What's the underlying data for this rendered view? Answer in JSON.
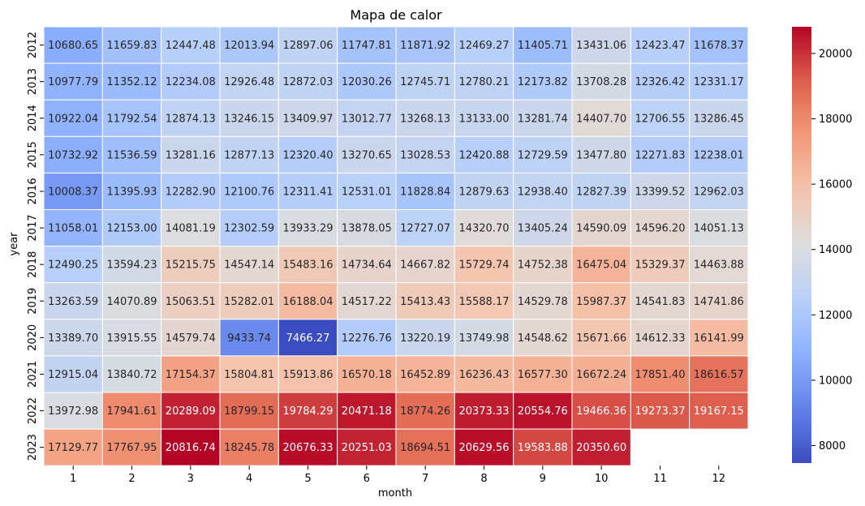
{
  "chart_data": {
    "type": "heatmap",
    "title": "Mapa de calor",
    "xlabel": "month",
    "ylabel": "year",
    "x_categories": [
      "1",
      "2",
      "3",
      "4",
      "5",
      "6",
      "7",
      "8",
      "9",
      "10",
      "11",
      "12"
    ],
    "y_categories": [
      "2012",
      "2013",
      "2014",
      "2015",
      "2016",
      "2017",
      "2018",
      "2019",
      "2020",
      "2021",
      "2022",
      "2023"
    ],
    "values": [
      [
        10680.65,
        11659.83,
        12447.48,
        12013.94,
        12897.06,
        11747.81,
        11871.92,
        12469.27,
        11405.71,
        13431.06,
        12423.47,
        11678.37
      ],
      [
        10977.79,
        11352.12,
        12234.08,
        12926.48,
        12872.03,
        12030.26,
        12745.71,
        12780.21,
        12173.82,
        13708.28,
        12326.42,
        12331.17
      ],
      [
        10922.04,
        11792.54,
        12874.13,
        13246.15,
        13409.97,
        13012.77,
        13268.13,
        13133.0,
        13281.74,
        14407.7,
        12706.55,
        13286.45
      ],
      [
        10732.92,
        11536.59,
        13281.16,
        12877.13,
        12320.4,
        13270.65,
        13028.53,
        12420.88,
        12729.59,
        13477.8,
        12271.83,
        12238.01
      ],
      [
        10008.37,
        11395.93,
        12282.9,
        12100.76,
        12311.41,
        12531.01,
        11828.84,
        12879.63,
        12938.4,
        12827.39,
        13399.52,
        12962.03
      ],
      [
        11058.01,
        12153.0,
        14081.19,
        12302.59,
        13933.29,
        13878.05,
        12727.07,
        14320.7,
        13405.24,
        14590.09,
        14596.2,
        14051.13
      ],
      [
        12490.25,
        13594.23,
        15215.75,
        14547.14,
        15483.16,
        14734.64,
        14667.82,
        15729.74,
        14752.38,
        16475.04,
        15329.37,
        14463.88
      ],
      [
        13263.59,
        14070.89,
        15063.51,
        15282.01,
        16188.04,
        14517.22,
        15413.43,
        15588.17,
        14529.78,
        15987.37,
        14541.83,
        14741.86
      ],
      [
        13389.7,
        13915.55,
        14579.74,
        9433.74,
        7466.27,
        12276.76,
        13220.19,
        13749.98,
        14548.62,
        15671.66,
        14612.33,
        16141.99
      ],
      [
        12915.04,
        13840.72,
        17154.37,
        15804.81,
        15913.86,
        16570.18,
        16452.89,
        16236.43,
        16577.3,
        16672.24,
        17851.4,
        18616.57
      ],
      [
        13972.98,
        17941.61,
        20289.09,
        18799.15,
        19784.29,
        20471.18,
        18774.26,
        20373.33,
        20554.76,
        19466.36,
        19273.37,
        19167.15
      ],
      [
        17129.77,
        17767.95,
        20816.74,
        18245.78,
        20676.33,
        20251.03,
        18694.51,
        20629.56,
        19583.88,
        20350.6,
        null,
        null
      ]
    ],
    "value_format": "%.2f",
    "colormap": "coolwarm",
    "vmin": 7466.27,
    "vmax": 20816.74,
    "colorbar_ticks": [
      8000,
      10000,
      12000,
      14000,
      16000,
      18000,
      20000
    ],
    "grid": false,
    "legend": "colorbar-right"
  }
}
